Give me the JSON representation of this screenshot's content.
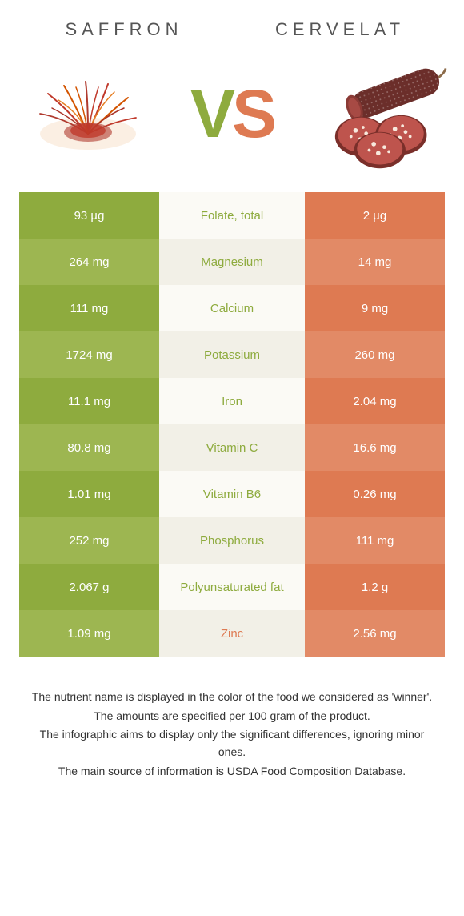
{
  "colors": {
    "left": "#8eab3e",
    "left_alt": "#9db651",
    "right": "#de7a52",
    "right_alt": "#e28a66",
    "mid_bg_a": "#fbfaf5",
    "mid_bg_b": "#f2f0e7",
    "mid_text_neutral": "#777",
    "background": "#ffffff"
  },
  "header": {
    "left": "Saffron",
    "right": "Cervelat"
  },
  "vs": {
    "v": "V",
    "s": "S"
  },
  "rows": [
    {
      "left": "93 µg",
      "mid": "Folate, total",
      "right": "2 µg",
      "winner": "left"
    },
    {
      "left": "264 mg",
      "mid": "Magnesium",
      "right": "14 mg",
      "winner": "left"
    },
    {
      "left": "111 mg",
      "mid": "Calcium",
      "right": "9 mg",
      "winner": "left"
    },
    {
      "left": "1724 mg",
      "mid": "Potassium",
      "right": "260 mg",
      "winner": "left"
    },
    {
      "left": "11.1 mg",
      "mid": "Iron",
      "right": "2.04 mg",
      "winner": "left"
    },
    {
      "left": "80.8 mg",
      "mid": "Vitamin C",
      "right": "16.6 mg",
      "winner": "left"
    },
    {
      "left": "1.01 mg",
      "mid": "Vitamin B6",
      "right": "0.26 mg",
      "winner": "left"
    },
    {
      "left": "252 mg",
      "mid": "Phosphorus",
      "right": "111 mg",
      "winner": "left"
    },
    {
      "left": "2.067 g",
      "mid": "Polyunsaturated fat",
      "right": "1.2 g",
      "winner": "left"
    },
    {
      "left": "1.09 mg",
      "mid": "Zinc",
      "right": "2.56 mg",
      "winner": "right"
    }
  ],
  "footer": {
    "l1": "The nutrient name is displayed in the color of the food we considered as 'winner'.",
    "l2": "The amounts are specified per 100 gram of the product.",
    "l3": "The infographic aims to display only the significant differences, ignoring minor ones.",
    "l4": "The main source of information is USDA Food Composition Database."
  }
}
